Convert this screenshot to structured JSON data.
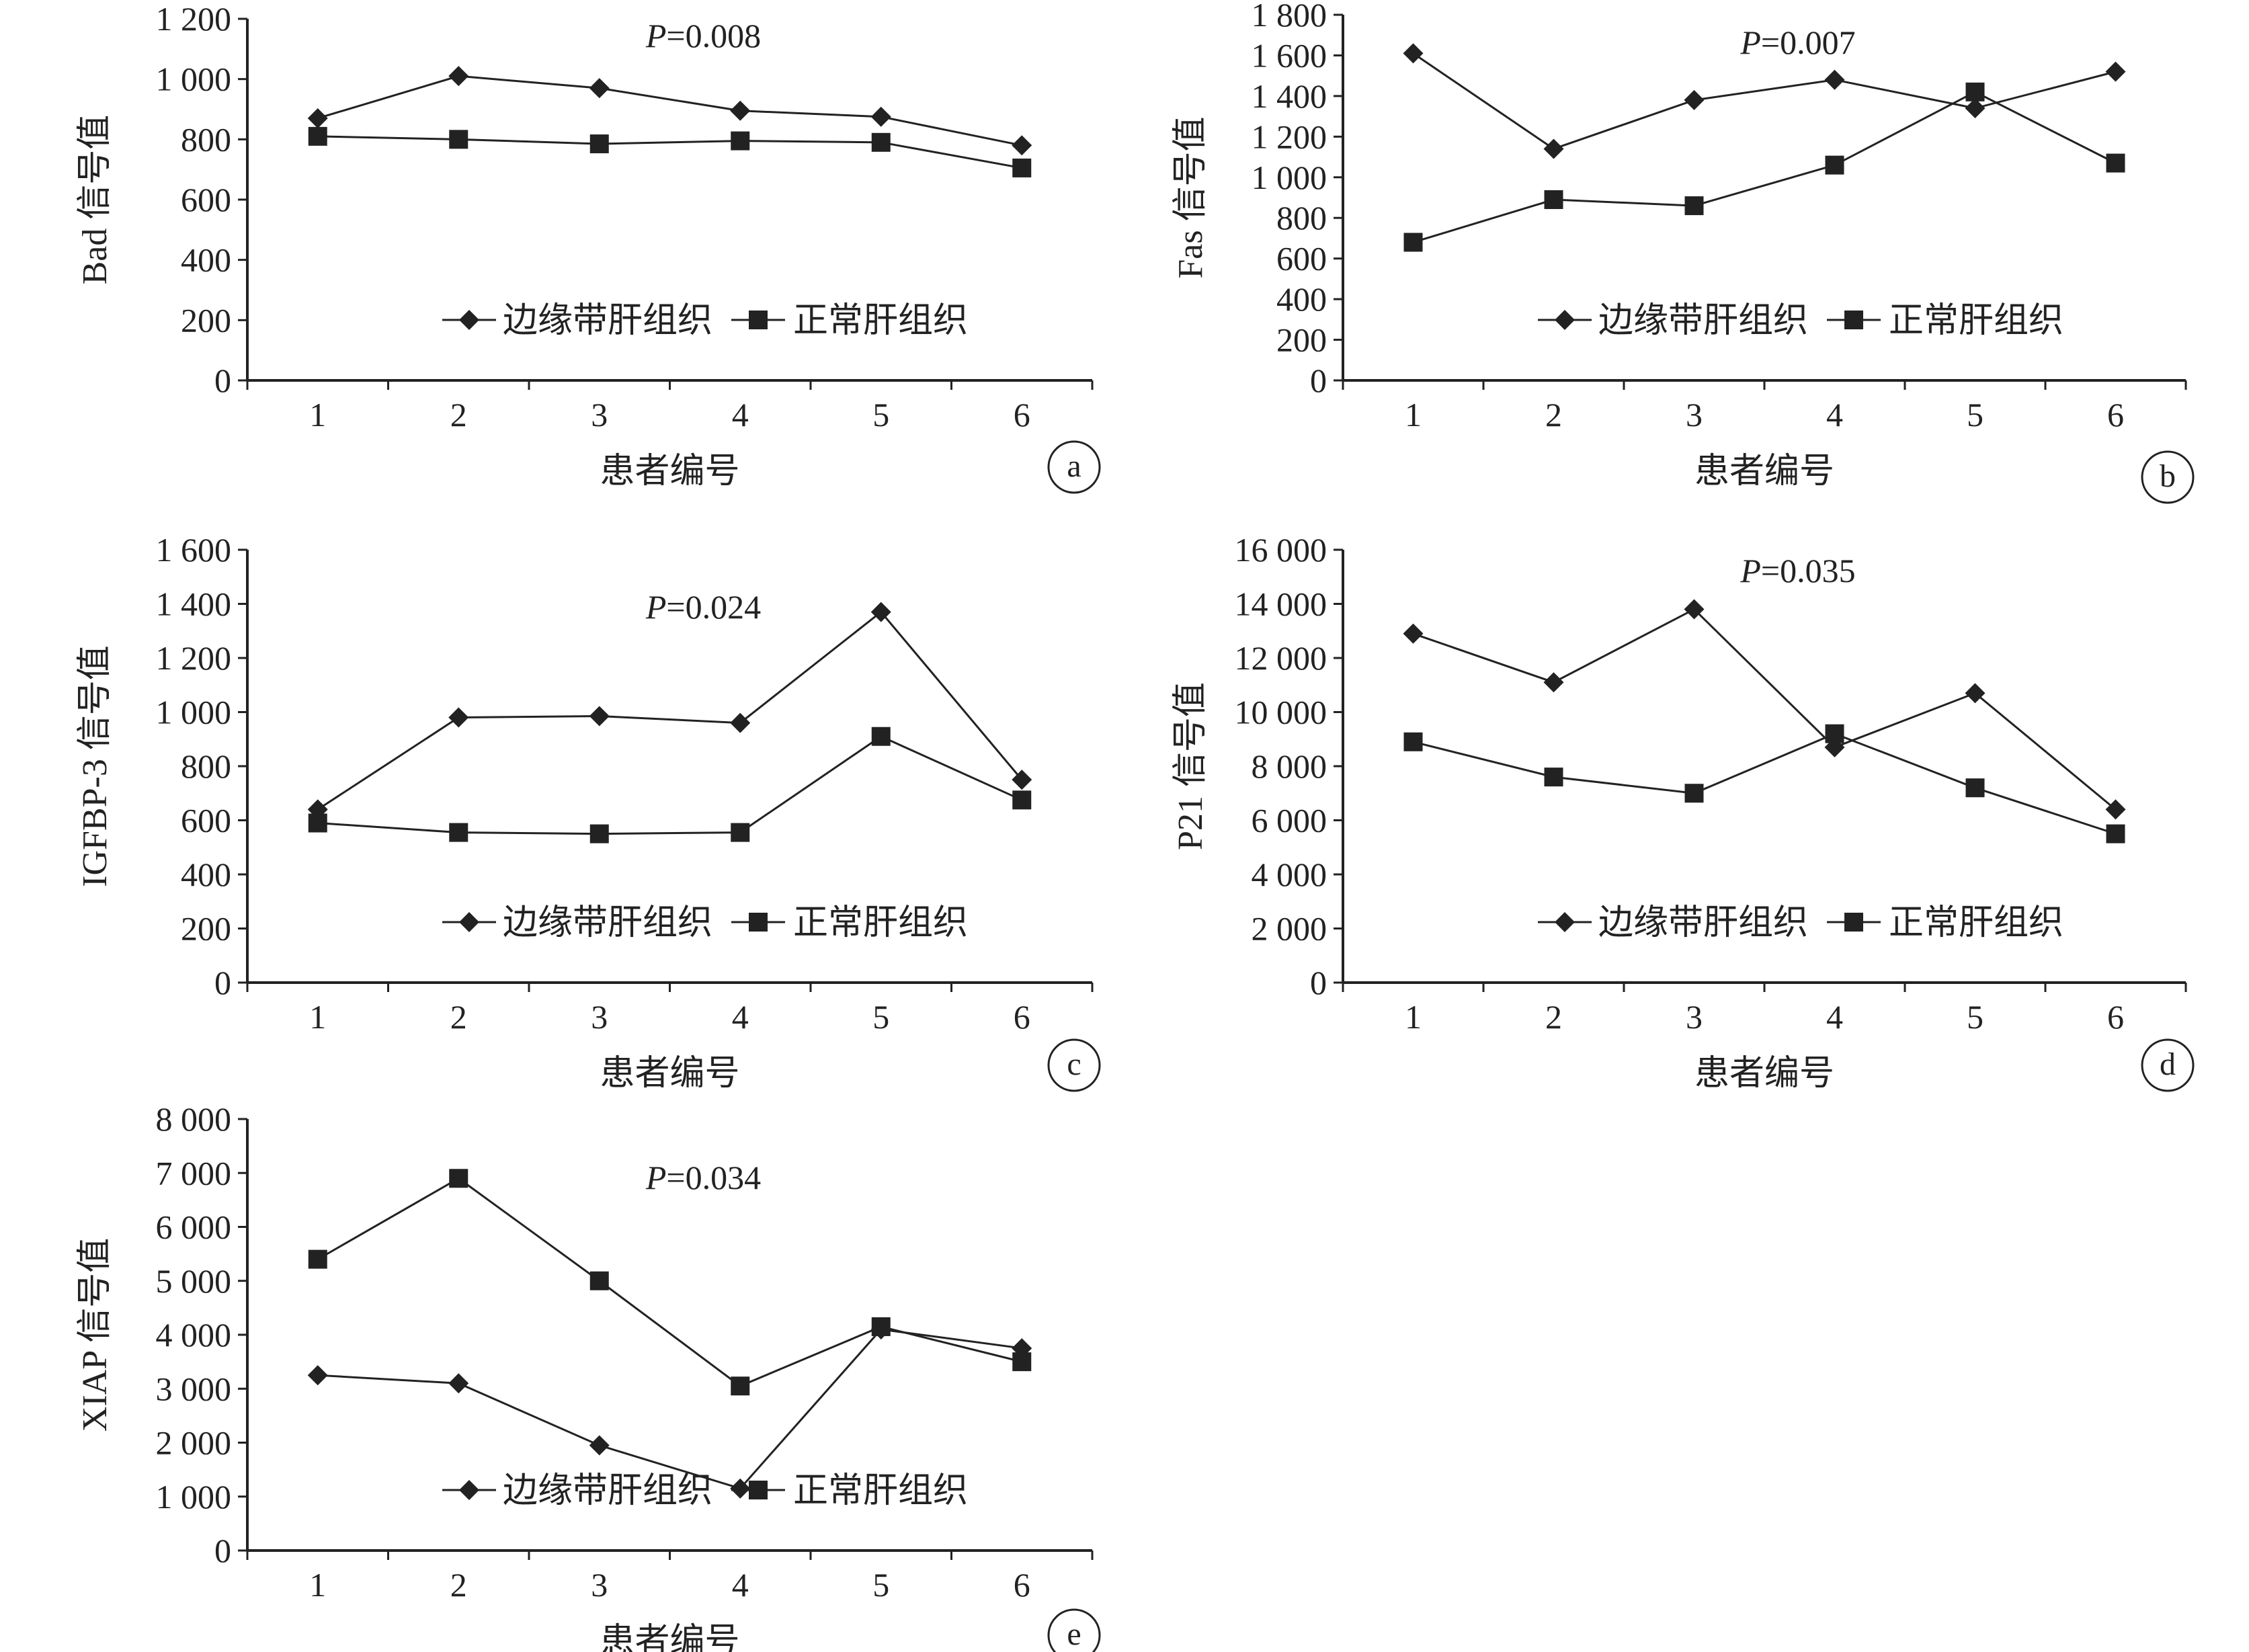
{
  "legend": {
    "series": [
      "边缘带肝组织",
      "正常肝组织"
    ]
  },
  "chart_data": [
    {
      "type": "line",
      "panel": "a",
      "p_value": "P=0.008",
      "xlabel": "患者编号",
      "ylabel": "Bad 信号值",
      "x": [
        1,
        2,
        3,
        4,
        5,
        6
      ],
      "ylim": [
        0,
        1200
      ],
      "yticks": [
        0,
        200,
        400,
        600,
        800,
        1000,
        1200
      ],
      "ytick_labels": [
        "0",
        "200",
        "400",
        "600",
        "800",
        "1 000",
        "1 200"
      ],
      "series": [
        {
          "name": "边缘带肝组织",
          "marker": "diamond",
          "values": [
            870,
            1010,
            970,
            895,
            875,
            780
          ]
        },
        {
          "name": "正常肝组织",
          "marker": "square",
          "values": [
            810,
            800,
            785,
            795,
            790,
            705
          ]
        }
      ]
    },
    {
      "type": "line",
      "panel": "b",
      "p_value": "P=0.007",
      "xlabel": "患者编号",
      "ylabel": "Fas 信号值",
      "x": [
        1,
        2,
        3,
        4,
        5,
        6
      ],
      "ylim": [
        0,
        1800
      ],
      "yticks": [
        0,
        200,
        400,
        600,
        800,
        1000,
        1200,
        1400,
        1600,
        1800
      ],
      "ytick_labels": [
        "0",
        "200",
        "400",
        "600",
        "800",
        "1 000",
        "1 200",
        "1 400",
        "1 600",
        "1 800"
      ],
      "series": [
        {
          "name": "边缘带肝组织",
          "marker": "diamond",
          "values": [
            1610,
            1140,
            1380,
            1480,
            1340,
            1520
          ]
        },
        {
          "name": "正常肝组织",
          "marker": "square",
          "values": [
            680,
            890,
            860,
            1060,
            1420,
            1070
          ]
        }
      ]
    },
    {
      "type": "line",
      "panel": "c",
      "p_value": "P=0.024",
      "xlabel": "患者编号",
      "ylabel": "IGFBP-3 信号值",
      "x": [
        1,
        2,
        3,
        4,
        5,
        6
      ],
      "ylim": [
        0,
        1600
      ],
      "yticks": [
        0,
        200,
        400,
        600,
        800,
        1000,
        1200,
        1400,
        1600
      ],
      "ytick_labels": [
        "0",
        "200",
        "400",
        "600",
        "800",
        "1 000",
        "1 200",
        "1 400",
        "1 600"
      ],
      "series": [
        {
          "name": "边缘带肝组织",
          "marker": "diamond",
          "values": [
            640,
            980,
            985,
            960,
            1370,
            750
          ]
        },
        {
          "name": "正常肝组织",
          "marker": "square",
          "values": [
            590,
            555,
            550,
            555,
            910,
            675
          ]
        }
      ]
    },
    {
      "type": "line",
      "panel": "d",
      "p_value": "P=0.035",
      "xlabel": "患者编号",
      "ylabel": "P21 信号值",
      "x": [
        1,
        2,
        3,
        4,
        5,
        6
      ],
      "ylim": [
        0,
        16000
      ],
      "yticks": [
        0,
        2000,
        4000,
        6000,
        8000,
        10000,
        12000,
        14000,
        16000
      ],
      "ytick_labels": [
        "0",
        "2 000",
        "4 000",
        "6 000",
        "8 000",
        "10 000",
        "12 000",
        "14 000",
        "16 000"
      ],
      "series": [
        {
          "name": "边缘带肝组织",
          "marker": "diamond",
          "values": [
            12900,
            11100,
            13800,
            8700,
            10700,
            6400
          ]
        },
        {
          "name": "正常肝组织",
          "marker": "square",
          "values": [
            8900,
            7600,
            7000,
            9200,
            7200,
            5500
          ]
        }
      ]
    },
    {
      "type": "line",
      "panel": "e",
      "p_value": "P=0.034",
      "xlabel": "患者编号",
      "ylabel": "XIAP 信号值",
      "x": [
        1,
        2,
        3,
        4,
        5,
        6
      ],
      "ylim": [
        0,
        8000
      ],
      "yticks": [
        0,
        1000,
        2000,
        3000,
        4000,
        5000,
        6000,
        7000,
        8000
      ],
      "ytick_labels": [
        "0",
        "1 000",
        "2 000",
        "3 000",
        "4 000",
        "5 000",
        "6 000",
        "7 000",
        "8 000"
      ],
      "series": [
        {
          "name": "边缘带肝组织",
          "marker": "diamond",
          "values": [
            3250,
            3100,
            1950,
            1150,
            4100,
            3750
          ]
        },
        {
          "name": "正常肝组织",
          "marker": "square",
          "values": [
            5400,
            6900,
            5000,
            3050,
            4150,
            3500
          ]
        }
      ]
    }
  ]
}
